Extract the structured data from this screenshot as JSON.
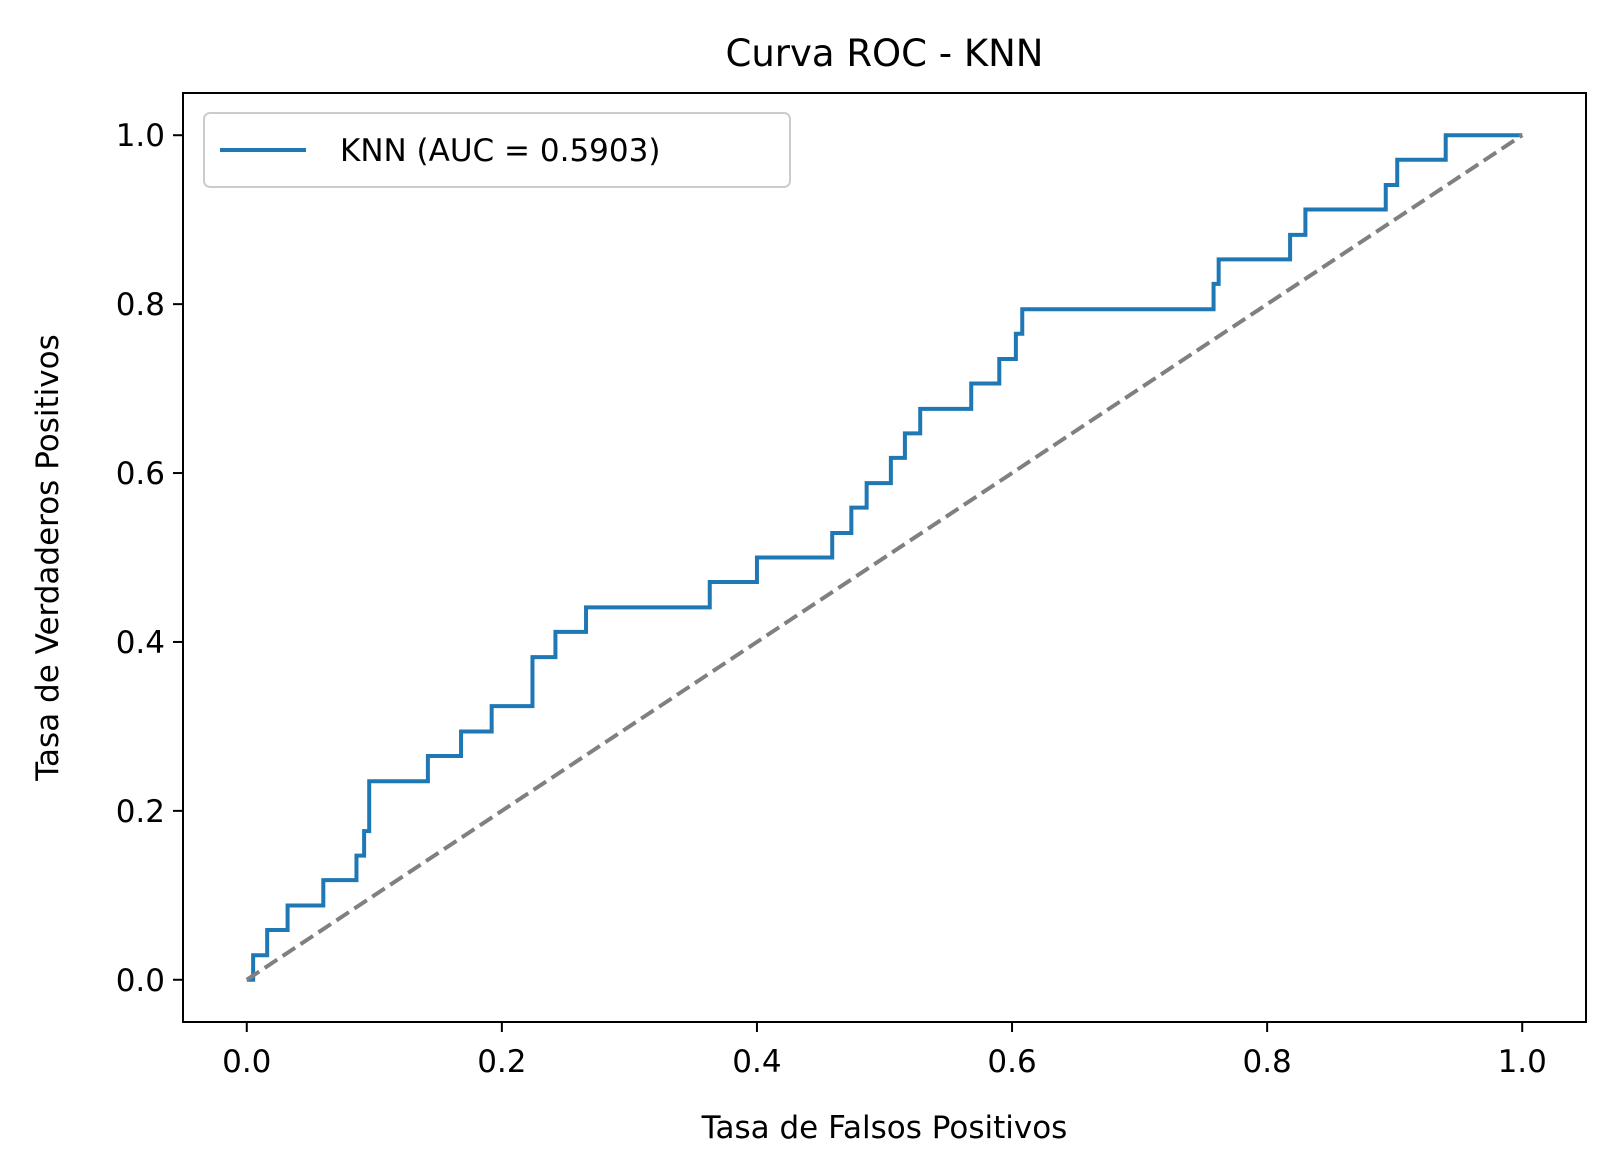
{
  "chart_data": {
    "type": "line",
    "title": "Curva ROC - KNN",
    "xlabel": "Tasa de Falsos Positivos",
    "ylabel": "Tasa de Verdaderos Positivos",
    "xlim": [
      -0.05,
      1.05
    ],
    "ylim": [
      -0.05,
      1.05
    ],
    "xticks": [
      "0.0",
      "0.2",
      "0.4",
      "0.6",
      "0.8",
      "1.0"
    ],
    "yticks": [
      "0.0",
      "0.2",
      "0.4",
      "0.6",
      "0.8",
      "1.0"
    ],
    "grid": false,
    "legend_position": "upper left",
    "series": [
      {
        "name": "KNN (AUC = 0.5903)",
        "color": "#1f77b4",
        "style": "solid",
        "x": [
          0.0,
          0.005,
          0.005,
          0.016,
          0.016,
          0.032,
          0.032,
          0.06,
          0.06,
          0.086,
          0.086,
          0.092,
          0.092,
          0.096,
          0.096,
          0.142,
          0.142,
          0.168,
          0.168,
          0.192,
          0.192,
          0.224,
          0.224,
          0.242,
          0.242,
          0.266,
          0.266,
          0.363,
          0.363,
          0.4,
          0.4,
          0.459,
          0.459,
          0.474,
          0.474,
          0.486,
          0.486,
          0.505,
          0.505,
          0.516,
          0.516,
          0.528,
          0.528,
          0.568,
          0.568,
          0.59,
          0.59,
          0.603,
          0.603,
          0.608,
          0.608,
          0.758,
          0.758,
          0.762,
          0.762,
          0.818,
          0.818,
          0.83,
          0.83,
          0.893,
          0.893,
          0.902,
          0.902,
          0.94,
          0.94,
          1.0
        ],
        "y": [
          0.0,
          0.0,
          0.029,
          0.029,
          0.059,
          0.059,
          0.088,
          0.088,
          0.118,
          0.118,
          0.147,
          0.147,
          0.176,
          0.176,
          0.235,
          0.235,
          0.265,
          0.265,
          0.294,
          0.294,
          0.324,
          0.324,
          0.382,
          0.382,
          0.412,
          0.412,
          0.441,
          0.441,
          0.471,
          0.471,
          0.5,
          0.5,
          0.529,
          0.529,
          0.559,
          0.559,
          0.588,
          0.588,
          0.618,
          0.618,
          0.647,
          0.647,
          0.676,
          0.676,
          0.706,
          0.706,
          0.735,
          0.735,
          0.765,
          0.765,
          0.794,
          0.794,
          0.824,
          0.824,
          0.853,
          0.853,
          0.882,
          0.882,
          0.912,
          0.912,
          0.941,
          0.941,
          0.971,
          0.971,
          1.0,
          1.0
        ]
      },
      {
        "color": "#808080",
        "style": "dashed",
        "x": [
          0.0,
          1.0
        ],
        "y": [
          0.0,
          1.0
        ]
      }
    ]
  }
}
